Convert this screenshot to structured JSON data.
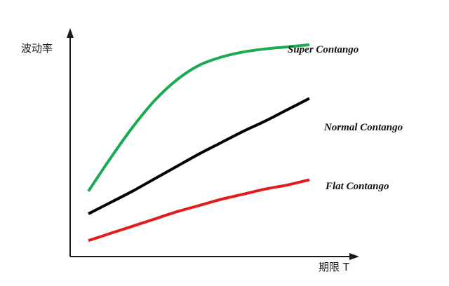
{
  "chart_data": {
    "type": "line",
    "title": "",
    "ylabel": "波动率",
    "xlabel": "期限 T",
    "grid": false,
    "series": [
      {
        "name": "Super Contango",
        "color": "#1aaa50",
        "x": [
          0,
          1,
          2,
          3,
          4,
          5,
          6,
          7,
          8,
          9,
          10
        ],
        "y": [
          2.8,
          4.4,
          5.9,
          7.2,
          8.2,
          8.9,
          9.3,
          9.55,
          9.7,
          9.8,
          9.9
        ]
      },
      {
        "name": "Normal Contango",
        "color": "#000000",
        "x": [
          0,
          1,
          2,
          3,
          4,
          5,
          6,
          7,
          8,
          9,
          10
        ],
        "y": [
          1.7,
          2.25,
          2.8,
          3.4,
          4.0,
          4.6,
          5.15,
          5.7,
          6.2,
          6.75,
          7.3
        ]
      },
      {
        "name": "Flat Contango",
        "color": "#e31b1b",
        "x": [
          0,
          1,
          2,
          3,
          4,
          5,
          6,
          7,
          8,
          9,
          10
        ],
        "y": [
          0.4,
          0.75,
          1.1,
          1.45,
          1.8,
          2.1,
          2.4,
          2.65,
          2.9,
          3.1,
          3.35
        ]
      }
    ]
  }
}
